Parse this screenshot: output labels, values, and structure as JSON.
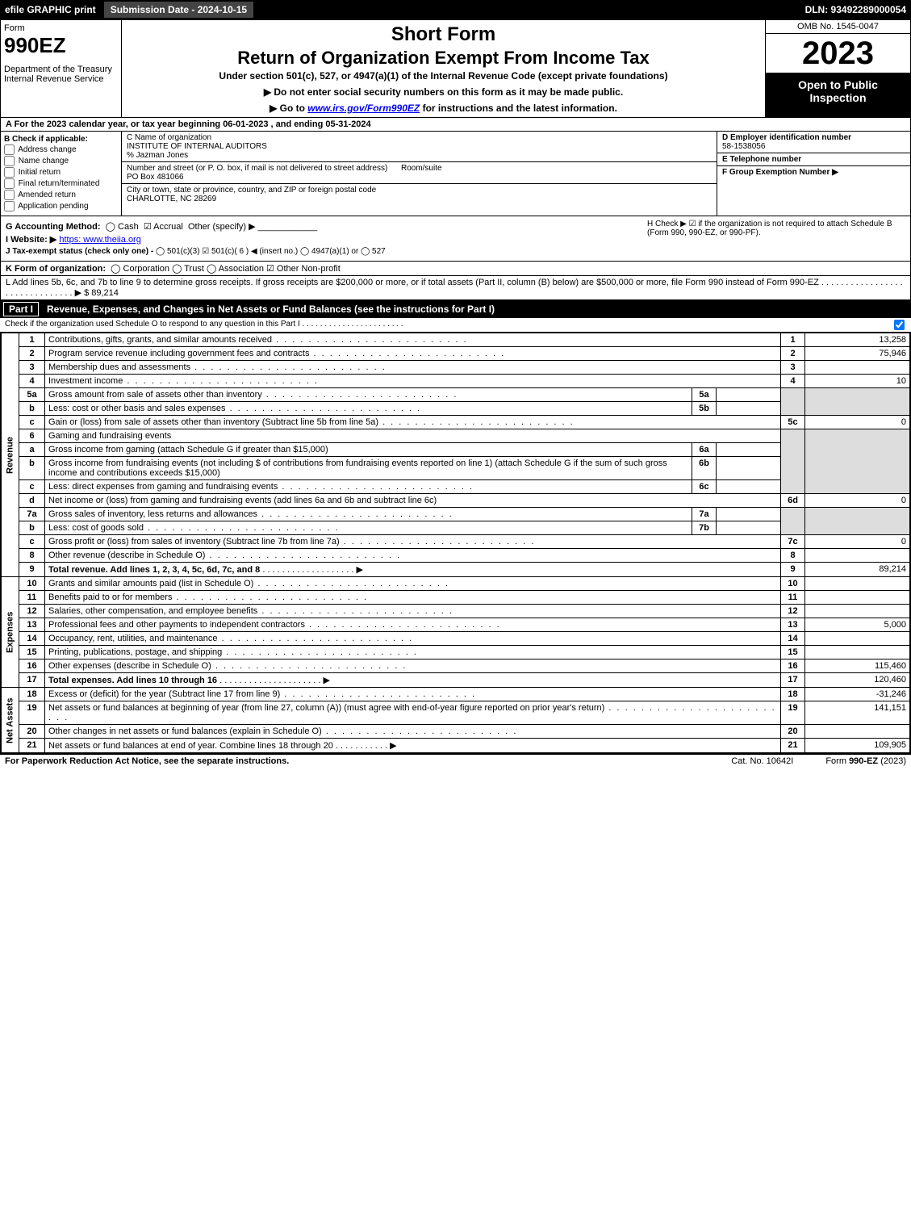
{
  "top": {
    "efile": "efile GRAPHIC print",
    "submission_label": "Submission Date - 2024-10-15",
    "dln": "DLN: 93492289000054"
  },
  "header": {
    "form_word": "Form",
    "form_num": "990EZ",
    "dept": "Department of the Treasury\nInternal Revenue Service",
    "short_form": "Short Form",
    "main_title": "Return of Organization Exempt From Income Tax",
    "sub": "Under section 501(c), 527, or 4947(a)(1) of the Internal Revenue Code (except private foundations)",
    "arrow1": "▶ Do not enter social security numbers on this form as it may be made public.",
    "arrow2": "▶ Go to www.irs.gov/Form990EZ for instructions and the latest information.",
    "omb": "OMB No. 1545-0047",
    "year": "2023",
    "open": "Open to Public Inspection"
  },
  "a": {
    "text": "A  For the 2023 calendar year, or tax year beginning 06-01-2023 , and ending 05-31-2024"
  },
  "b": {
    "label": "B  Check if applicable:",
    "opts": [
      "Address change",
      "Name change",
      "Initial return",
      "Final return/terminated",
      "Amended return",
      "Application pending"
    ]
  },
  "c": {
    "name_label": "C Name of organization",
    "name": "INSTITUTE OF INTERNAL AUDITORS",
    "care_of": "% Jazman Jones",
    "street_label": "Number and street (or P. O. box, if mail is not delivered to street address)",
    "room_label": "Room/suite",
    "street": "PO Box 481066",
    "city_label": "City or town, state or province, country, and ZIP or foreign postal code",
    "city": "CHARLOTTE, NC  28269"
  },
  "d": {
    "label": "D Employer identification number",
    "value": "58-1538056"
  },
  "e": {
    "label": "E Telephone number",
    "value": ""
  },
  "f": {
    "label": "F Group Exemption Number  ▶",
    "value": ""
  },
  "g": {
    "label": "G Accounting Method:",
    "cash": "Cash",
    "accrual": "Accrual",
    "other": "Other (specify) ▶",
    "accrual_checked": true
  },
  "h": {
    "text": "H  Check ▶ ☑ if the organization is not required to attach Schedule B (Form 990, 990-EZ, or 990-PF)."
  },
  "i": {
    "label": "I Website: ▶",
    "value": "https: www.theiia.org"
  },
  "j": {
    "label": "J Tax-exempt status (check only one) -",
    "opts": "◯ 501(c)(3)  ☑ 501(c)( 6 ) ◀ (insert no.)  ◯ 4947(a)(1) or  ◯ 527"
  },
  "k": {
    "label": "K Form of organization:",
    "opts": "◯ Corporation  ◯ Trust  ◯ Association  ☑ Other Non-profit"
  },
  "l": {
    "text": "L Add lines 5b, 6c, and 7b to line 9 to determine gross receipts. If gross receipts are $200,000 or more, or if total assets (Part II, column (B) below) are $500,000 or more, file Form 990 instead of Form 990-EZ . . . . . . . . . . . . . . . . . . . . . . . . . . . . . . . ▶ $ 89,214"
  },
  "part1": {
    "label": "Part I",
    "title": "Revenue, Expenses, and Changes in Net Assets or Fund Balances (see the instructions for Part I)",
    "sub": "Check if the organization used Schedule O to respond to any question in this Part I . . . . . . . . . . . . . . . . . . . . . . .",
    "sub_checked": true
  },
  "sections": {
    "revenue": "Revenue",
    "expenses": "Expenses",
    "netassets": "Net Assets"
  },
  "lines": {
    "1": {
      "desc": "Contributions, gifts, grants, and similar amounts received",
      "rnum": "1",
      "rval": "13,258"
    },
    "2": {
      "desc": "Program service revenue including government fees and contracts",
      "rnum": "2",
      "rval": "75,946"
    },
    "3": {
      "desc": "Membership dues and assessments",
      "rnum": "3",
      "rval": ""
    },
    "4": {
      "desc": "Investment income",
      "rnum": "4",
      "rval": "10"
    },
    "5a": {
      "desc": "Gross amount from sale of assets other than inventory",
      "mid": "5a"
    },
    "5b": {
      "desc": "Less: cost or other basis and sales expenses",
      "mid": "5b"
    },
    "5c": {
      "desc": "Gain or (loss) from sale of assets other than inventory (Subtract line 5b from line 5a)",
      "rnum": "5c",
      "rval": "0"
    },
    "6": {
      "desc": "Gaming and fundraising events"
    },
    "6a": {
      "desc": "Gross income from gaming (attach Schedule G if greater than $15,000)",
      "mid": "6a"
    },
    "6b": {
      "desc": "Gross income from fundraising events (not including $                    of contributions from fundraising events reported on line 1) (attach Schedule G if the sum of such gross income and contributions exceeds $15,000)",
      "mid": "6b"
    },
    "6c": {
      "desc": "Less: direct expenses from gaming and fundraising events",
      "mid": "6c"
    },
    "6d": {
      "desc": "Net income or (loss) from gaming and fundraising events (add lines 6a and 6b and subtract line 6c)",
      "rnum": "6d",
      "rval": "0"
    },
    "7a": {
      "desc": "Gross sales of inventory, less returns and allowances",
      "mid": "7a"
    },
    "7b": {
      "desc": "Less: cost of goods sold",
      "mid": "7b"
    },
    "7c": {
      "desc": "Gross profit or (loss) from sales of inventory (Subtract line 7b from line 7a)",
      "rnum": "7c",
      "rval": "0"
    },
    "8": {
      "desc": "Other revenue (describe in Schedule O)",
      "rnum": "8",
      "rval": ""
    },
    "9": {
      "desc": "Total revenue. Add lines 1, 2, 3, 4, 5c, 6d, 7c, and 8",
      "rnum": "9",
      "rval": "89,214",
      "arrow": "▶"
    },
    "10": {
      "desc": "Grants and similar amounts paid (list in Schedule O)",
      "rnum": "10",
      "rval": ""
    },
    "11": {
      "desc": "Benefits paid to or for members",
      "rnum": "11",
      "rval": ""
    },
    "12": {
      "desc": "Salaries, other compensation, and employee benefits",
      "rnum": "12",
      "rval": ""
    },
    "13": {
      "desc": "Professional fees and other payments to independent contractors",
      "rnum": "13",
      "rval": "5,000"
    },
    "14": {
      "desc": "Occupancy, rent, utilities, and maintenance",
      "rnum": "14",
      "rval": ""
    },
    "15": {
      "desc": "Printing, publications, postage, and shipping",
      "rnum": "15",
      "rval": ""
    },
    "16": {
      "desc": "Other expenses (describe in Schedule O)",
      "rnum": "16",
      "rval": "115,460"
    },
    "17": {
      "desc": "Total expenses. Add lines 10 through 16",
      "rnum": "17",
      "rval": "120,460",
      "arrow": "▶"
    },
    "18": {
      "desc": "Excess or (deficit) for the year (Subtract line 17 from line 9)",
      "rnum": "18",
      "rval": "-31,246"
    },
    "19": {
      "desc": "Net assets or fund balances at beginning of year (from line 27, column (A)) (must agree with end-of-year figure reported on prior year's return)",
      "rnum": "19",
      "rval": "141,151"
    },
    "20": {
      "desc": "Other changes in net assets or fund balances (explain in Schedule O)",
      "rnum": "20",
      "rval": ""
    },
    "21": {
      "desc": "Net assets or fund balances at end of year. Combine lines 18 through 20",
      "rnum": "21",
      "rval": "109,905",
      "arrow": "▶"
    }
  },
  "footer": {
    "left": "For Paperwork Reduction Act Notice, see the separate instructions.",
    "mid": "Cat. No. 10642I",
    "right": "Form 990-EZ (2023)"
  },
  "colors": {
    "black": "#000000",
    "shade": "#dddddd",
    "link": "#0000ee"
  }
}
